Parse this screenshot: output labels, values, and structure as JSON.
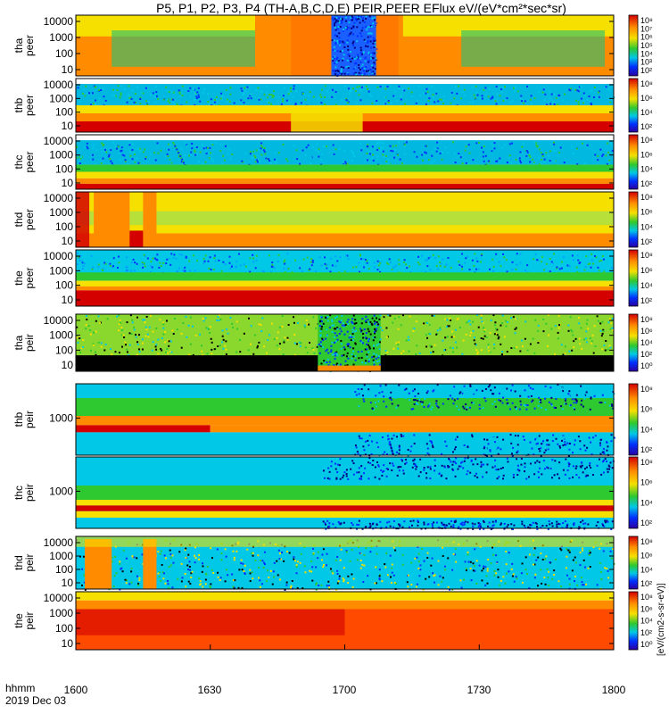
{
  "chart_data": {
    "type": "heatmap",
    "title": "P5, P1, P2, P3, P4 (TH-A,B,C,D,E) PEIR,PEER EFlux eV/(eV*cm²*sec*sr)",
    "x_ticks": [
      "1600",
      "1630",
      "1700",
      "1730",
      "1800"
    ],
    "x_label_lines": [
      "hhmm",
      "2019 Dec 03"
    ],
    "colorbar_label": "[eV/(cm2-s-sr-eV)]",
    "panels": [
      {
        "probe": "tha",
        "product": "peer",
        "y_ticks": [
          "10000",
          "1000",
          "100",
          "10"
        ],
        "colorbar_ticks": [
          "10⁸",
          "10⁷",
          "10⁶",
          "10⁵",
          "10⁴",
          "10³",
          "10²"
        ]
      },
      {
        "probe": "thb",
        "product": "peer",
        "y_ticks": [
          "10000",
          "1000",
          "100",
          "10"
        ],
        "colorbar_ticks": [
          "10⁸",
          "10⁶",
          "10⁴",
          "10²"
        ]
      },
      {
        "probe": "thc",
        "product": "peer",
        "y_ticks": [
          "10000",
          "1000",
          "100",
          "10"
        ],
        "colorbar_ticks": [
          "10⁸",
          "10⁶",
          "10⁴",
          "10²"
        ]
      },
      {
        "probe": "thd",
        "product": "peer",
        "y_ticks": [
          "10000",
          "1000",
          "100",
          "10"
        ],
        "colorbar_ticks": [
          "10⁸",
          "10⁶",
          "10⁴",
          "10²"
        ]
      },
      {
        "probe": "the",
        "product": "peer",
        "y_ticks": [
          "10000",
          "1000",
          "100",
          "10"
        ],
        "colorbar_ticks": [
          "10⁸",
          "10⁶",
          "10⁴",
          "10²"
        ]
      },
      {
        "probe": "tha",
        "product": "peir",
        "y_ticks": [
          "10000",
          "1000",
          "100",
          "10"
        ],
        "colorbar_ticks": [
          "10⁸",
          "10⁶",
          "10⁴",
          "10²",
          "10⁰"
        ]
      },
      {
        "probe": "thb",
        "product": "peir",
        "y_ticks": [
          "1000"
        ],
        "colorbar_ticks": [
          "10⁸",
          "10⁶",
          "10⁴",
          "10²"
        ]
      },
      {
        "probe": "thc",
        "product": "peir",
        "y_ticks": [
          "1000"
        ],
        "colorbar_ticks": [
          "10⁸",
          "10⁶",
          "10⁴",
          "10²"
        ]
      },
      {
        "probe": "thd",
        "product": "peir",
        "y_ticks": [
          "10000",
          "1000",
          "100",
          "10"
        ],
        "colorbar_ticks": [
          "10⁸",
          "10⁶",
          "10⁴",
          "10²"
        ]
      },
      {
        "probe": "the",
        "product": "peir",
        "y_ticks": [
          "10000",
          "1000",
          "100",
          "10"
        ],
        "colorbar_ticks": [
          "10⁸",
          "10⁶",
          "10⁴",
          "10²",
          "10⁰"
        ]
      }
    ]
  },
  "colors": {
    "hot": "#d40000",
    "orange": "#ff8c00",
    "yellow": "#f5e000",
    "green": "#2ec830",
    "cyan": "#00c8e6",
    "blue": "#0030ff"
  }
}
